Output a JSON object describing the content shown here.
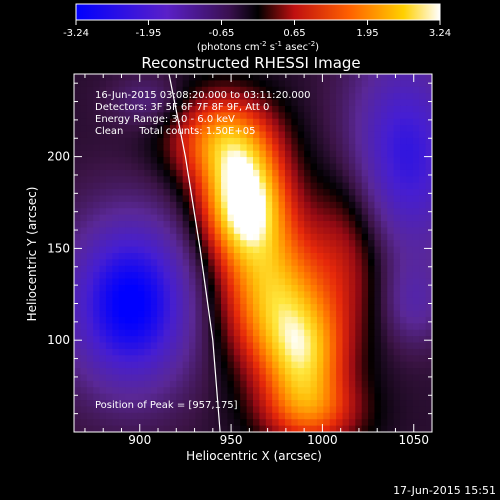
{
  "chart_data": {
    "type": "heatmap",
    "title": "Reconstructed RHESSI Image",
    "xlabel": "Heliocentric X (arcsec)",
    "ylabel": "Heliocentric Y (arcsec)",
    "xlim": [
      864,
      1060
    ],
    "ylim": [
      50,
      245
    ],
    "x_ticks": [
      900,
      950,
      1000,
      1050
    ],
    "y_ticks": [
      100,
      150,
      200
    ],
    "colorbar": {
      "range": [
        -3.24,
        3.24
      ],
      "ticks": [
        "-3.24",
        "-1.95",
        "-0.65",
        "0.65",
        "1.95",
        "3.24"
      ],
      "unit_label": "(photons cm",
      "unit_exp1": "-2",
      "unit_mid": " s",
      "unit_exp2": "-1",
      "unit_mid2": " asec",
      "unit_exp3": "-2",
      "unit_end": ")"
    },
    "annotations": [
      "16-Jun-2015 03:08:20.000 to 03:11:20.000",
      "Detectors: 3F 5F 6F 7F 8F 9F, Att 0",
      "Energy Range: 3.0 - 6.0 keV",
      "Clean     Total counts: 1.50E+05"
    ],
    "peak_label": "Position of Peak = [957,175]",
    "peak": {
      "x": 957,
      "y": 175,
      "value": 3.24
    },
    "timestamp": "17-Jun-2015 15:51",
    "limb": [
      [
        916,
        245
      ],
      [
        925,
        200
      ],
      [
        933,
        150
      ],
      [
        940,
        100
      ],
      [
        944,
        50
      ]
    ],
    "sources": [
      {
        "x": 957,
        "y": 175,
        "amp": 3.6,
        "sx": 16,
        "sy": 22
      },
      {
        "x": 945,
        "y": 210,
        "amp": 2.2,
        "sx": 20,
        "sy": 18
      },
      {
        "x": 972,
        "y": 125,
        "amp": 2.6,
        "sx": 20,
        "sy": 28
      },
      {
        "x": 990,
        "y": 90,
        "amp": 2.4,
        "sx": 16,
        "sy": 22
      },
      {
        "x": 1015,
        "y": 150,
        "amp": 1.2,
        "sx": 16,
        "sy": 34
      },
      {
        "x": 995,
        "y": 60,
        "amp": 1.4,
        "sx": 20,
        "sy": 14
      },
      {
        "x": 895,
        "y": 120,
        "amp": -3.0,
        "sx": 24,
        "sy": 32
      },
      {
        "x": 1045,
        "y": 200,
        "amp": -2.2,
        "sx": 22,
        "sy": 40
      },
      {
        "x": 1050,
        "y": 120,
        "amp": -0.9,
        "sx": 12,
        "sy": 16
      },
      {
        "x": 905,
        "y": 230,
        "amp": -0.7,
        "sx": 14,
        "sy": 10
      }
    ]
  }
}
